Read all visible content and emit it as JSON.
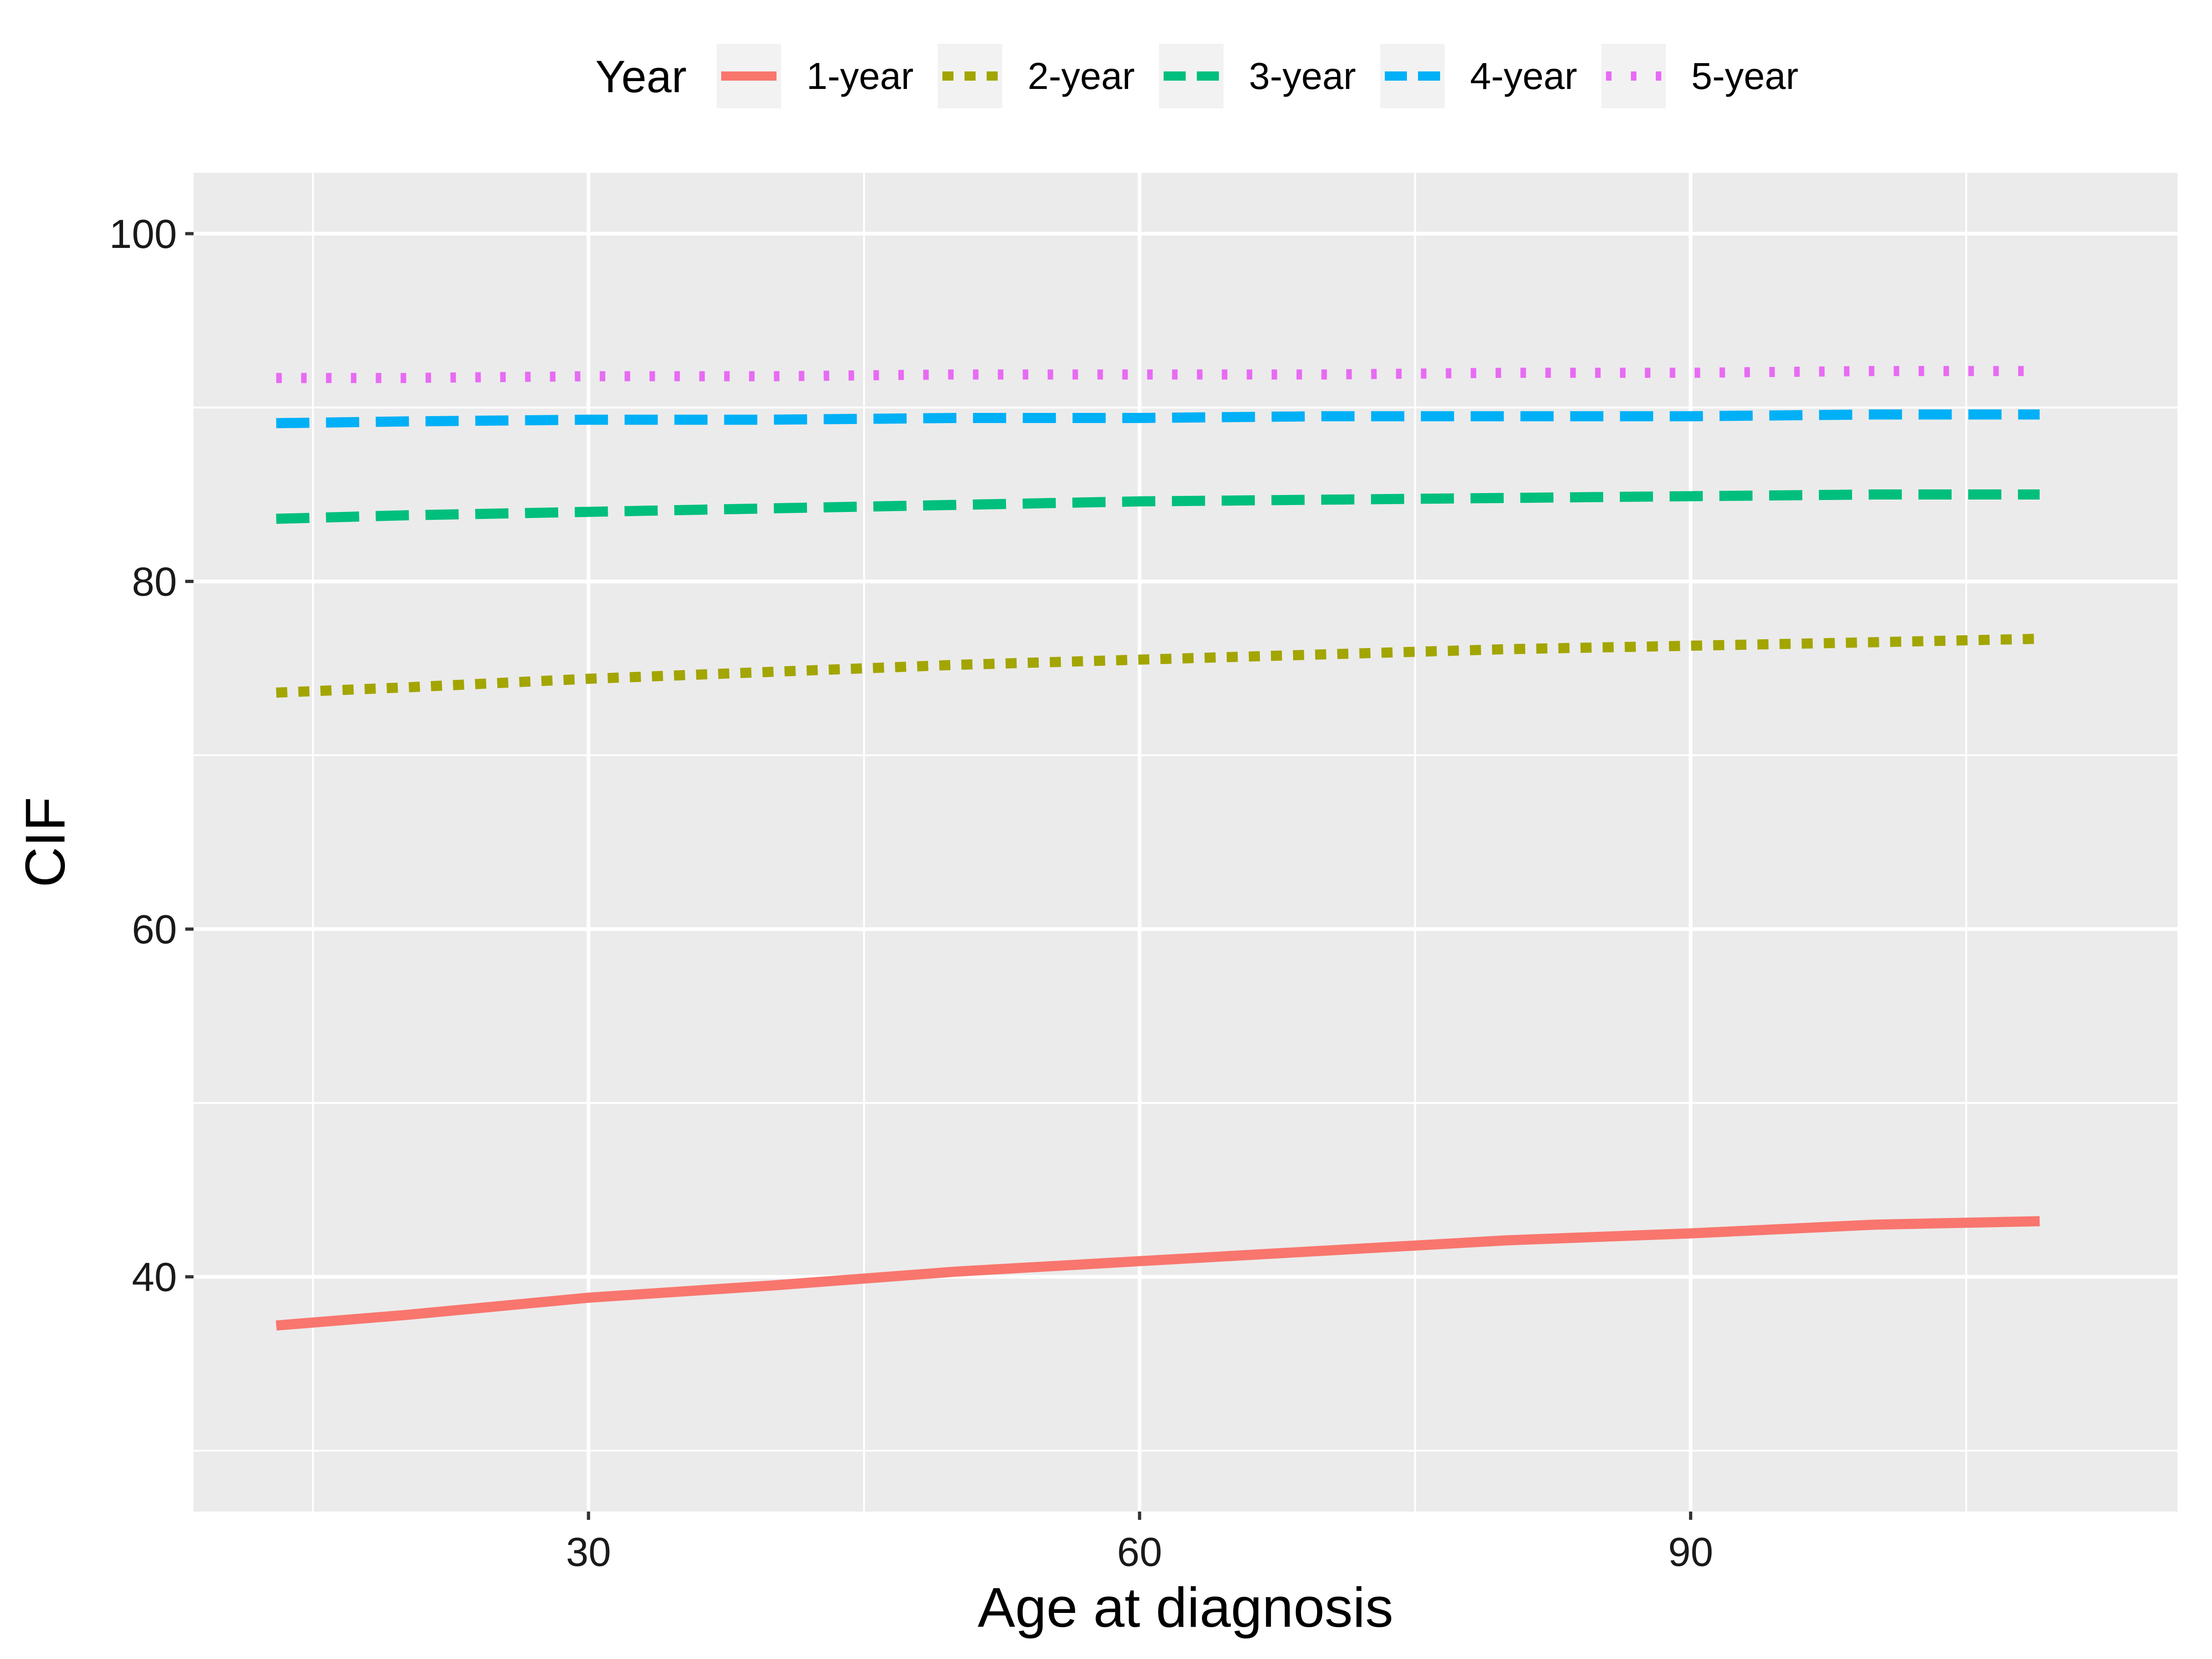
{
  "chart_data": {
    "type": "line",
    "xlabel": "Age at diagnosis",
    "ylabel": "CIF",
    "xlim": [
      8.5,
      116.5
    ],
    "ylim": [
      26.5,
      103.5
    ],
    "x_ticks": [
      30,
      60,
      90
    ],
    "y_ticks": [
      40,
      60,
      80,
      100
    ],
    "x_minor_ticks": [
      15,
      45,
      75,
      105
    ],
    "y_minor_ticks": [
      30,
      50,
      70,
      90
    ],
    "grid": true,
    "panel_background": "#EBEBEB",
    "legend": {
      "title": "Year",
      "placement": "top"
    },
    "series": [
      {
        "name": "1-year",
        "color": "#F8766D",
        "dash": "solid",
        "x": [
          13,
          20,
          30,
          40,
          50,
          60,
          70,
          80,
          90,
          100,
          109
        ],
        "values": [
          37.2,
          37.8,
          38.8,
          39.5,
          40.3,
          40.9,
          41.5,
          42.1,
          42.5,
          43.0,
          43.2
        ]
      },
      {
        "name": "2-year",
        "color": "#A3A500",
        "dash": "short-dash",
        "x": [
          13,
          20,
          30,
          40,
          50,
          60,
          70,
          80,
          90,
          100,
          109
        ],
        "values": [
          73.6,
          73.9,
          74.4,
          74.8,
          75.2,
          75.5,
          75.8,
          76.1,
          76.3,
          76.5,
          76.7
        ]
      },
      {
        "name": "3-year",
        "color": "#00BF7D",
        "dash": "long-dash",
        "x": [
          13,
          20,
          30,
          40,
          50,
          60,
          70,
          80,
          90,
          100,
          109
        ],
        "values": [
          83.6,
          83.8,
          84.0,
          84.2,
          84.4,
          84.6,
          84.7,
          84.8,
          84.9,
          85.0,
          85.0
        ]
      },
      {
        "name": "4-year",
        "color": "#00B0F6",
        "dash": "long-dash",
        "x": [
          13,
          20,
          30,
          40,
          50,
          60,
          70,
          80,
          90,
          100,
          109
        ],
        "values": [
          89.1,
          89.2,
          89.3,
          89.3,
          89.4,
          89.4,
          89.5,
          89.5,
          89.5,
          89.6,
          89.6
        ]
      },
      {
        "name": "5-year",
        "color": "#E76BF3",
        "dash": "dotted",
        "x": [
          13,
          20,
          30,
          40,
          50,
          60,
          70,
          80,
          90,
          100,
          109
        ],
        "values": [
          91.7,
          91.7,
          91.8,
          91.8,
          91.9,
          91.9,
          91.9,
          92.0,
          92.0,
          92.1,
          92.1
        ]
      }
    ]
  }
}
